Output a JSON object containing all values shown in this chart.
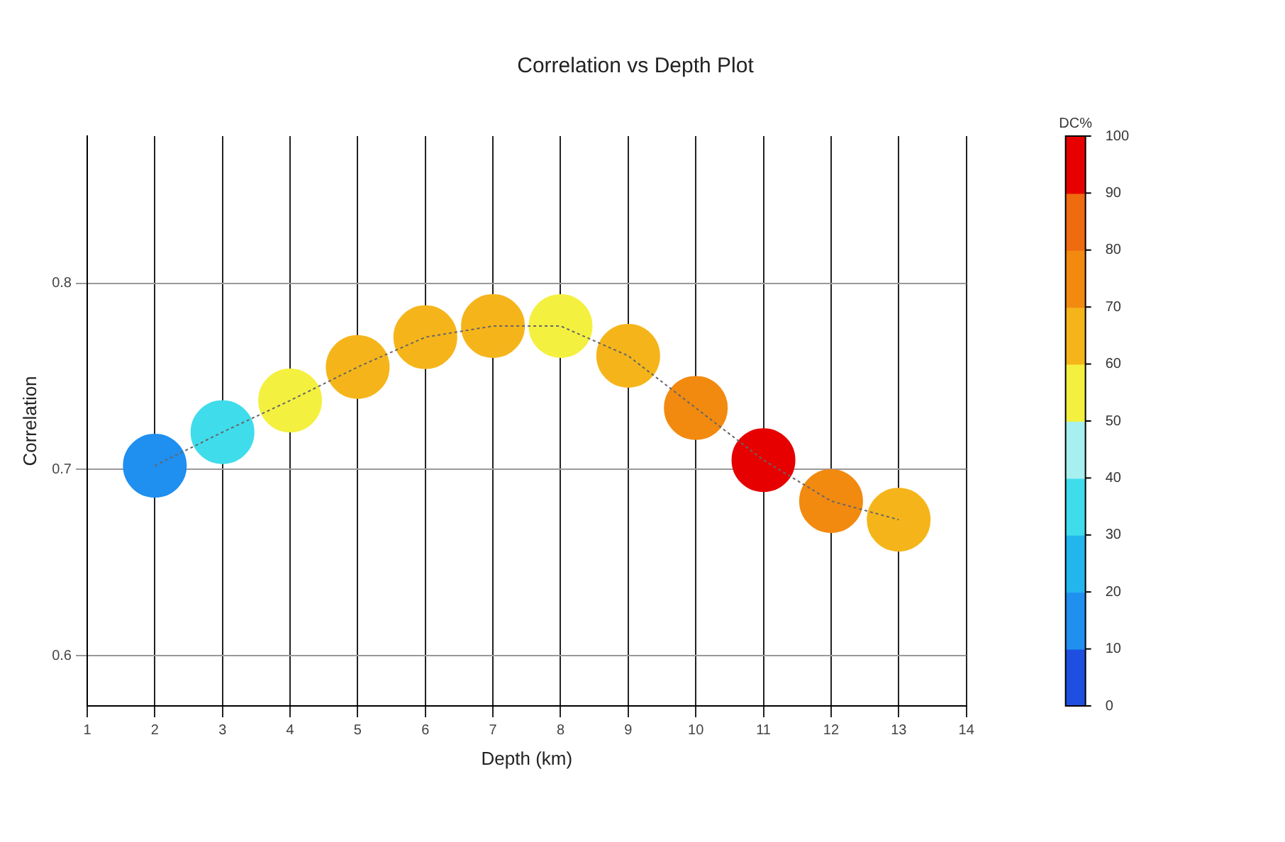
{
  "chart_data": {
    "type": "scatter",
    "title": "Correlation vs Depth Plot",
    "xlabel": "Depth (km)",
    "ylabel": "Correlation",
    "clabel": "DC%",
    "x": [
      2,
      3,
      4,
      5,
      6,
      7,
      8,
      9,
      10,
      11,
      12,
      13
    ],
    "series": [
      {
        "type": "line",
        "color": "#666666",
        "line_style": "dotted",
        "marker": "none",
        "values": [
          0.702,
          0.72,
          0.737,
          0.755,
          0.771,
          0.777,
          0.777,
          0.761,
          0.733,
          0.705,
          0.683,
          0.673
        ]
      },
      {
        "type": "scatter",
        "marker": "circle",
        "values": [
          0.702,
          0.72,
          0.737,
          0.755,
          0.771,
          0.777,
          0.777,
          0.761,
          0.733,
          0.705,
          0.683,
          0.673
        ],
        "cvalues": [
          15,
          35,
          55,
          65,
          65,
          65,
          55,
          65,
          75,
          95,
          75,
          65
        ],
        "colors": [
          "#1f8ff0",
          "#3fdcec",
          "#f4f040",
          "#f5b51a",
          "#f5b51a",
          "#f5b51a",
          "#f4f040",
          "#f5b51a",
          "#f28a10",
          "#e60000",
          "#f28a10",
          "#f5b51a"
        ]
      }
    ],
    "clim": [
      0,
      100
    ],
    "cticks": [
      0,
      10,
      20,
      30,
      40,
      50,
      60,
      70,
      80,
      90,
      100
    ],
    "xlim": [
      1,
      14
    ],
    "xticks": [
      1,
      2,
      3,
      4,
      5,
      6,
      7,
      8,
      9,
      10,
      11,
      12,
      13,
      14
    ],
    "ylim": [
      0.573,
      0.879
    ],
    "yticks": [
      0.6,
      0.7,
      0.8
    ],
    "grid": true,
    "legend": false
  }
}
